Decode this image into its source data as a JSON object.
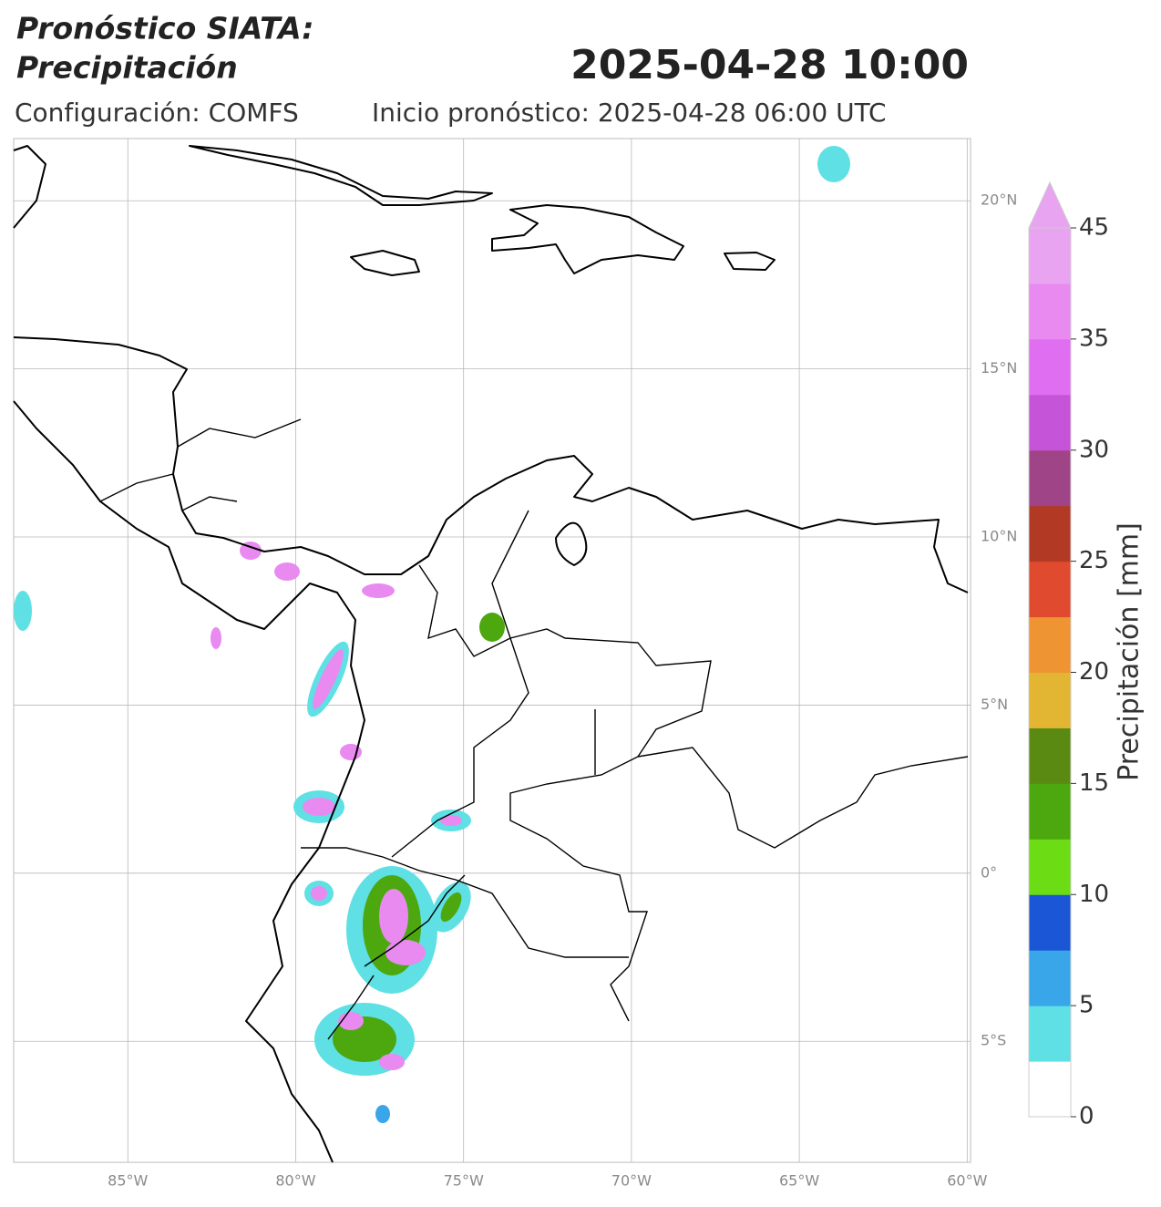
{
  "header": {
    "title_line1": "Pronóstico SIATA:",
    "title_line2": "Precipitación",
    "valid_time": "2025-04-28 10:00",
    "configuration": "Configuración: COMFS",
    "init": "Inicio pronóstico: 2025-04-28 06:00 UTC"
  },
  "map": {
    "lonlim": [
      -88.4,
      -59.9
    ],
    "latlim": [
      -8.6,
      21.85
    ],
    "lon_ticks": [
      {
        "value": -85,
        "label": "85°W"
      },
      {
        "value": -80,
        "label": "80°W"
      },
      {
        "value": -75,
        "label": "75°W"
      },
      {
        "value": -70,
        "label": "70°W"
      },
      {
        "value": -65,
        "label": "65°W"
      },
      {
        "value": -60,
        "label": "60°W"
      }
    ],
    "lat_ticks": [
      {
        "value": 20,
        "label": "20°N"
      },
      {
        "value": 15,
        "label": "15°N"
      },
      {
        "value": 10,
        "label": "10°N"
      },
      {
        "value": 5,
        "label": "5°N"
      },
      {
        "value": 0,
        "label": "0°"
      },
      {
        "value": -5,
        "label": "5°S"
      }
    ]
  },
  "colorbar": {
    "label": "Precipitación [mm]",
    "boundaries": [
      0,
      2.5,
      5,
      7.5,
      10,
      12.5,
      15,
      17.5,
      20,
      22.5,
      25,
      27.5,
      30,
      32.5,
      35,
      37.5,
      45
    ],
    "colors": [
      "#ffffff",
      "#5ee0e4",
      "#3aa6ea",
      "#1a56d6",
      "#6cdc14",
      "#4ca80e",
      "#5a8a12",
      "#e2b632",
      "#ef9432",
      "#e04a2e",
      "#b23a24",
      "#a04488",
      "#c554d8",
      "#e06ef0",
      "#e98af0",
      "#e8a4f0"
    ],
    "extend_color": "#e8a4f0",
    "ticks": [
      0,
      5,
      10,
      15,
      20,
      25,
      30,
      35,
      45
    ]
  }
}
